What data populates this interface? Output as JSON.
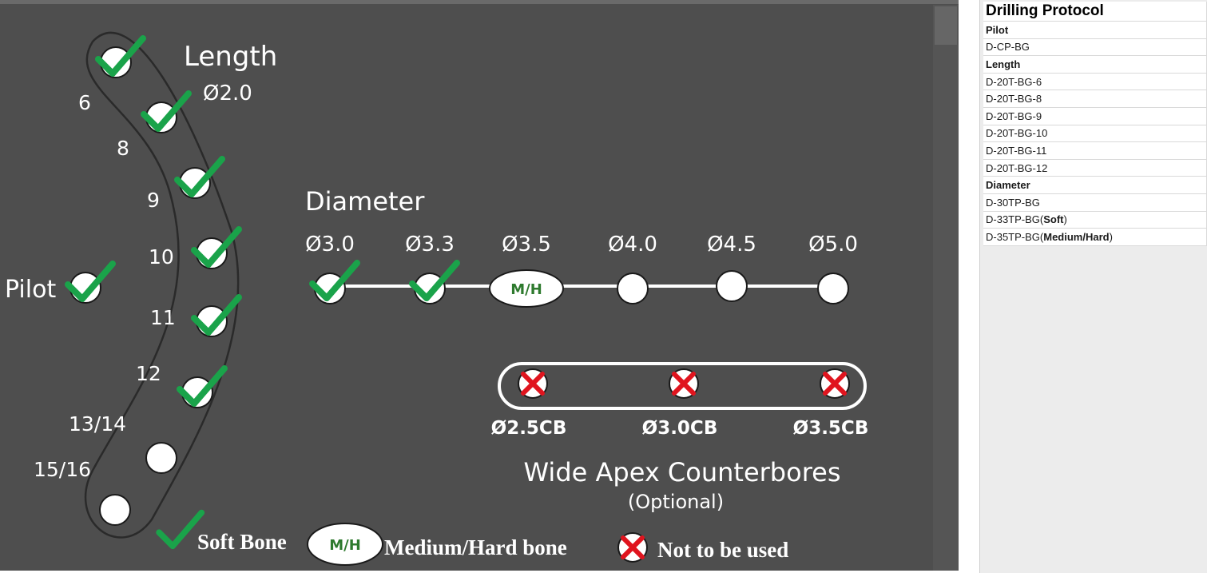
{
  "diagram": {
    "pilot_label": "Pilot",
    "length_label": "Length",
    "length_diameter": "Ø2.0",
    "length_steps": [
      "6",
      "8",
      "9",
      "10",
      "11",
      "12",
      "13/14",
      "15/16"
    ],
    "length_status": [
      "soft",
      "soft",
      "soft",
      "soft",
      "soft",
      "soft",
      "none",
      "none"
    ],
    "diameter_label": "Diameter",
    "diameters": [
      "Ø3.0",
      "Ø3.3",
      "Ø3.5",
      "Ø4.0",
      "Ø4.5",
      "Ø5.0"
    ],
    "diameter_status": [
      "soft",
      "soft",
      "mh",
      "none",
      "none",
      "none"
    ],
    "mh_text": "M/H",
    "counterbores": [
      "Ø2.5CB",
      "Ø3.0CB",
      "Ø3.5CB"
    ],
    "counterbores_title": "Wide Apex Counterbores",
    "counterbores_subtitle": "(Optional)",
    "legend": {
      "soft": "Soft Bone",
      "mh_badge": "M/H",
      "mh": "Medium/Hard bone",
      "not_used": "Not to be used"
    },
    "colors": {
      "panel_bg": "#4e4e4e",
      "check": "#1aa34a",
      "cross": "#e0141e",
      "mh_text": "#2e7a2e",
      "line": "#ffffff"
    }
  },
  "protocol": {
    "title": "Drilling Protocol",
    "rows": [
      {
        "type": "section",
        "text": "Pilot"
      },
      {
        "type": "item",
        "text": "D-CP-BG"
      },
      {
        "type": "section",
        "text": "Length"
      },
      {
        "type": "item",
        "text": "D-20T-BG-6"
      },
      {
        "type": "item",
        "text": "D-20T-BG-8"
      },
      {
        "type": "item",
        "text": "D-20T-BG-9"
      },
      {
        "type": "item",
        "text": "D-20T-BG-10"
      },
      {
        "type": "item",
        "text": "D-20T-BG-11"
      },
      {
        "type": "item",
        "text": "D-20T-BG-12"
      },
      {
        "type": "section",
        "text": "Diameter"
      },
      {
        "type": "item",
        "text": "D-30TP-BG"
      },
      {
        "type": "item",
        "text": "D-33TP-BG(",
        "bold": "Soft",
        "suffix": ")"
      },
      {
        "type": "item",
        "text": "D-35TP-BG(",
        "bold": "Medium/Hard",
        "suffix": ")"
      }
    ]
  }
}
